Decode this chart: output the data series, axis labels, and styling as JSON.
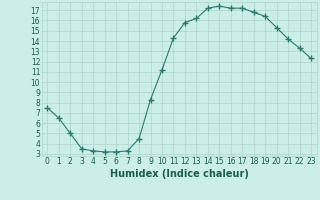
{
  "x": [
    0,
    1,
    2,
    3,
    4,
    5,
    6,
    7,
    8,
    9,
    10,
    11,
    12,
    13,
    14,
    15,
    16,
    17,
    18,
    19,
    20,
    21,
    22,
    23
  ],
  "y": [
    7.5,
    6.5,
    5.0,
    3.5,
    3.3,
    3.2,
    3.2,
    3.3,
    4.5,
    8.3,
    11.2,
    14.3,
    15.8,
    16.2,
    17.2,
    17.4,
    17.2,
    17.2,
    16.8,
    16.4,
    15.3,
    14.2,
    13.3,
    12.3
  ],
  "line_color": "#2d7a6e",
  "marker": "D",
  "marker_size": 2.0,
  "bg_color": "#cceee8",
  "grid_color": "#aed4cd",
  "xlabel": "Humidex (Indice chaleur)",
  "ylim": [
    2.8,
    17.8
  ],
  "xlim": [
    -0.5,
    23.5
  ],
  "yticks": [
    3,
    4,
    5,
    6,
    7,
    8,
    9,
    10,
    11,
    12,
    13,
    14,
    15,
    16,
    17
  ],
  "xticks": [
    0,
    1,
    2,
    3,
    4,
    5,
    6,
    7,
    8,
    9,
    10,
    11,
    12,
    13,
    14,
    15,
    16,
    17,
    18,
    19,
    20,
    21,
    22,
    23
  ],
  "tick_label_fontsize": 5.5,
  "xlabel_fontsize": 7.0,
  "label_color": "#1e5c52"
}
